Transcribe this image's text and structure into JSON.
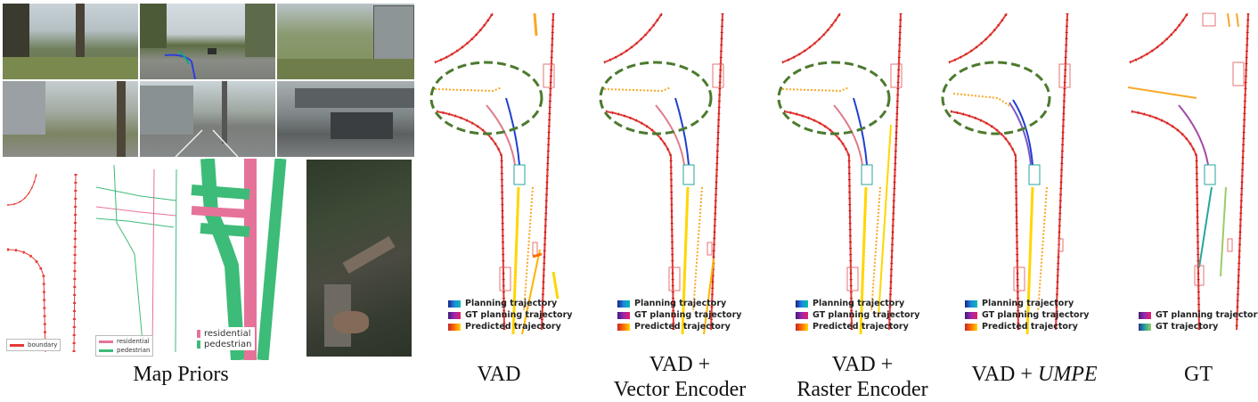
{
  "figure": {
    "captions": {
      "map_priors": "Map Priors",
      "vad": "VAD",
      "vad_vector_line1": "VAD +",
      "vad_vector_line2": "Vector Encoder",
      "vad_raster_line1": "VAD +",
      "vad_raster_line2": "Raster Encoder",
      "vad_umpe_prefix": "VAD + ",
      "vad_umpe_italic": "UMPE",
      "gt": "GT"
    },
    "prior_legends": {
      "boundary": "boundary",
      "vector": [
        "residential",
        "pedestrian"
      ],
      "raster": [
        "residential",
        "pedestrian"
      ]
    },
    "panel_legend": {
      "planning": "Planning trajectory",
      "gt_planning": "GT planning trajectory",
      "predicted": "Predicted trajectory"
    },
    "gt_legend": {
      "gt_planning": "GT planning trajectory",
      "gt_trajectory": "GT trajectory"
    },
    "colors": {
      "boundary": "#e53935",
      "lane_divider": "#f9a825",
      "residential": "#e57399",
      "pedestrian": "#3dbb78",
      "highlight_ellipse": "#4c7a2e",
      "agent_box": "#e57373",
      "ego_box": "#26a69a"
    }
  }
}
